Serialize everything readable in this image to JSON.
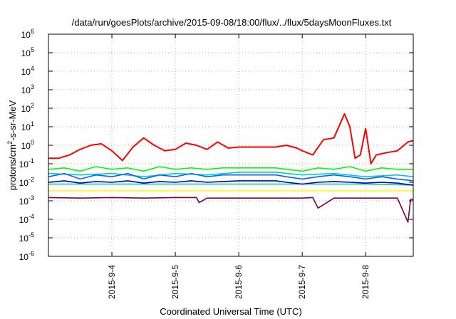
{
  "chart_data": {
    "type": "line",
    "title": "/data/run/goesPlots/archive/2015-09-08/18:00/flux/../flux/5daysMoonFluxes.txt",
    "xlabel": "Coordinated Universal Time (UTC)",
    "ylabel_parts": [
      "protons/cm",
      "2",
      "-s-sr-MeV"
    ],
    "y_scale": "log",
    "ylim": [
      -6,
      6
    ],
    "y_ticks": [
      {
        "base": "10",
        "exp": "-6"
      },
      {
        "base": "10",
        "exp": "-5"
      },
      {
        "base": "10",
        "exp": "-4"
      },
      {
        "base": "10",
        "exp": "-3"
      },
      {
        "base": "10",
        "exp": "-2"
      },
      {
        "base": "10",
        "exp": "-1"
      },
      {
        "base": "10",
        "exp": "0"
      },
      {
        "base": "10",
        "exp": "1"
      },
      {
        "base": "10",
        "exp": "2"
      },
      {
        "base": "10",
        "exp": "3"
      },
      {
        "base": "10",
        "exp": "4"
      },
      {
        "base": "10",
        "exp": "5"
      },
      {
        "base": "10",
        "exp": "6"
      }
    ],
    "xlim": [
      "2015-09-03 00:00",
      "2015-09-08 18:00"
    ],
    "x_ticks": [
      "2015-9-4",
      "2015-9-5",
      "2015-9-6",
      "2015-9-7",
      "2015-9-8"
    ],
    "grid": true,
    "data_gap": [
      "2015-09-06 00:00",
      "2015-09-06 14:00"
    ],
    "series": [
      {
        "color": "#ff0000",
        "x": [
          "2015-09-03 00:00",
          "2015-09-03 04:00",
          "2015-09-03 08:00",
          "2015-09-03 12:00",
          "2015-09-03 16:00",
          "2015-09-03 20:00",
          "2015-09-04 00:00",
          "2015-09-04 04:00",
          "2015-09-04 08:00",
          "2015-09-04 12:00",
          "2015-09-04 16:00",
          "2015-09-04 20:00",
          "2015-09-05 00:00",
          "2015-09-05 04:00",
          "2015-09-05 08:00",
          "2015-09-05 12:00",
          "2015-09-05 16:00",
          "2015-09-05 20:00",
          "2015-09-06 00:00",
          "2015-09-06 14:00",
          "2015-09-06 18:00",
          "2015-09-06 22:00",
          "2015-09-07 00:00",
          "2015-09-07 04:00",
          "2015-09-07 08:00",
          "2015-09-07 12:00",
          "2015-09-07 16:00",
          "2015-09-07 18:00",
          "2015-09-07 20:00",
          "2015-09-07 22:00",
          "2015-09-08 00:00",
          "2015-09-08 02:00",
          "2015-09-08 04:00",
          "2015-09-08 08:00",
          "2015-09-08 12:00",
          "2015-09-08 16:00",
          "2015-09-08 18:00"
        ],
        "y": [
          0.2,
          0.2,
          0.3,
          0.6,
          1.0,
          1.2,
          0.5,
          0.15,
          0.8,
          2.5,
          1.0,
          0.5,
          0.6,
          1.3,
          1.0,
          0.6,
          1.5,
          0.7,
          0.8,
          0.8,
          1.0,
          0.7,
          0.5,
          0.3,
          2.0,
          2.5,
          50,
          10,
          0.2,
          0.3,
          8,
          0.1,
          0.3,
          0.4,
          0.5,
          1.5,
          1.8
        ]
      },
      {
        "color": "#00ff00",
        "x": [
          "2015-09-03 00:00",
          "2015-09-03 06:00",
          "2015-09-03 12:00",
          "2015-09-03 18:00",
          "2015-09-04 00:00",
          "2015-09-04 06:00",
          "2015-09-04 12:00",
          "2015-09-04 18:00",
          "2015-09-05 00:00",
          "2015-09-05 06:00",
          "2015-09-05 12:00",
          "2015-09-05 18:00",
          "2015-09-06 00:00",
          "2015-09-06 14:00",
          "2015-09-06 18:00",
          "2015-09-07 00:00",
          "2015-09-07 06:00",
          "2015-09-07 12:00",
          "2015-09-07 18:00",
          "2015-09-08 00:00",
          "2015-09-08 06:00",
          "2015-09-08 12:00",
          "2015-09-08 18:00"
        ],
        "y": [
          0.05,
          0.06,
          0.04,
          0.07,
          0.05,
          0.06,
          0.04,
          0.07,
          0.05,
          0.06,
          0.05,
          0.06,
          0.06,
          0.06,
          0.05,
          0.04,
          0.06,
          0.05,
          0.07,
          0.04,
          0.06,
          0.05,
          0.05
        ]
      },
      {
        "color": "#00cccc",
        "x": [
          "2015-09-03 00:00",
          "2015-09-03 12:00",
          "2015-09-04 00:00",
          "2015-09-04 12:00",
          "2015-09-05 00:00",
          "2015-09-05 12:00",
          "2015-09-06 00:00",
          "2015-09-06 14:00",
          "2015-09-07 00:00",
          "2015-09-07 12:00",
          "2015-09-08 00:00",
          "2015-09-08 12:00",
          "2015-09-08 18:00"
        ],
        "y": [
          0.03,
          0.025,
          0.03,
          0.02,
          0.03,
          0.025,
          0.035,
          0.035,
          0.025,
          0.03,
          0.02,
          0.025,
          0.02
        ]
      },
      {
        "color": "#0066ff",
        "x": [
          "2015-09-03 00:00",
          "2015-09-03 06:00",
          "2015-09-03 12:00",
          "2015-09-03 18:00",
          "2015-09-04 00:00",
          "2015-09-04 06:00",
          "2015-09-04 12:00",
          "2015-09-04 18:00",
          "2015-09-05 00:00",
          "2015-09-05 06:00",
          "2015-09-05 12:00",
          "2015-09-05 18:00",
          "2015-09-06 00:00",
          "2015-09-06 14:00",
          "2015-09-06 18:00",
          "2015-09-07 00:00",
          "2015-09-07 06:00",
          "2015-09-07 12:00",
          "2015-09-07 18:00",
          "2015-09-08 00:00",
          "2015-09-08 06:00",
          "2015-09-08 12:00",
          "2015-09-08 18:00"
        ],
        "y": [
          0.02,
          0.03,
          0.015,
          0.025,
          0.02,
          0.03,
          0.015,
          0.025,
          0.02,
          0.03,
          0.02,
          0.025,
          0.025,
          0.025,
          0.02,
          0.015,
          0.02,
          0.025,
          0.02,
          0.015,
          0.02,
          0.015,
          0.012
        ]
      },
      {
        "color": "#00cc88",
        "x": [
          "2015-09-03 00:00",
          "2015-09-04 00:00",
          "2015-09-05 00:00",
          "2015-09-06 00:00",
          "2015-09-06 14:00",
          "2015-09-07 00:00",
          "2015-09-08 00:00",
          "2015-09-08 18:00"
        ],
        "y": [
          0.008,
          0.008,
          0.008,
          0.008,
          0.008,
          0.008,
          0.008,
          0.007
        ]
      },
      {
        "color": "#0000cc",
        "x": [
          "2015-09-03 00:00",
          "2015-09-03 06:00",
          "2015-09-03 12:00",
          "2015-09-03 18:00",
          "2015-09-04 00:00",
          "2015-09-04 06:00",
          "2015-09-04 12:00",
          "2015-09-04 18:00",
          "2015-09-05 00:00",
          "2015-09-05 06:00",
          "2015-09-05 12:00",
          "2015-09-05 18:00",
          "2015-09-06 00:00",
          "2015-09-06 14:00",
          "2015-09-06 18:00",
          "2015-09-07 00:00",
          "2015-09-07 06:00",
          "2015-09-07 12:00",
          "2015-09-07 18:00",
          "2015-09-08 00:00",
          "2015-09-08 06:00",
          "2015-09-08 12:00",
          "2015-09-08 18:00"
        ],
        "y": [
          0.01,
          0.012,
          0.009,
          0.011,
          0.01,
          0.012,
          0.009,
          0.011,
          0.01,
          0.012,
          0.01,
          0.011,
          0.012,
          0.012,
          0.01,
          0.008,
          0.01,
          0.011,
          0.01,
          0.009,
          0.01,
          0.009,
          0.007
        ]
      },
      {
        "color": "#ffff00",
        "x": [
          "2015-09-03 00:00",
          "2015-09-04 00:00",
          "2015-09-05 00:00",
          "2015-09-06 00:00",
          "2015-09-06 14:00",
          "2015-09-07 00:00",
          "2015-09-08 00:00",
          "2015-09-08 18:00"
        ],
        "y": [
          0.0035,
          0.0035,
          0.0035,
          0.0035,
          0.0035,
          0.0035,
          0.0035,
          0.0035
        ]
      },
      {
        "color": "#800040",
        "x": [
          "2015-09-03 00:00",
          "2015-09-03 12:00",
          "2015-09-04 00:00",
          "2015-09-04 12:00",
          "2015-09-05 00:00",
          "2015-09-05 08:00",
          "2015-09-05 09:00",
          "2015-09-05 12:00",
          "2015-09-06 00:00",
          "2015-09-06 14:00",
          "2015-09-07 00:00",
          "2015-09-07 04:00",
          "2015-09-07 06:00",
          "2015-09-07 12:00",
          "2015-09-08 00:00",
          "2015-09-08 12:00",
          "2015-09-08 16:00",
          "2015-09-08 17:00",
          "2015-09-08 18:00"
        ],
        "y": [
          0.0015,
          0.0014,
          0.0015,
          0.0014,
          0.0015,
          0.0015,
          0.0008,
          0.0014,
          0.0014,
          0.0014,
          0.0014,
          0.0015,
          0.0004,
          0.0014,
          0.0014,
          0.0014,
          7e-05,
          0.0012,
          0.0012
        ]
      }
    ]
  }
}
